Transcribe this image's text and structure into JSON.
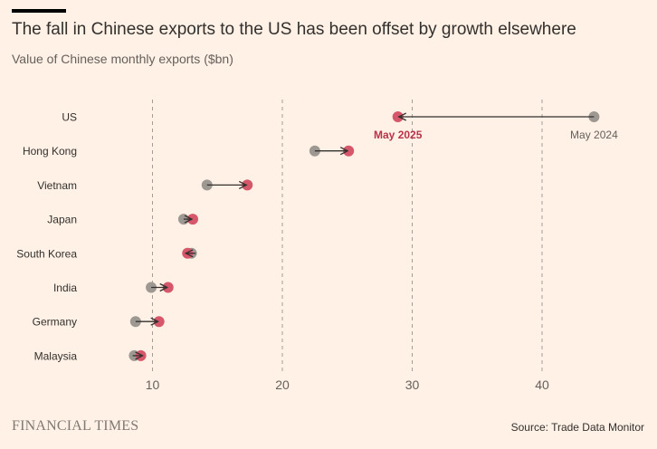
{
  "header": {
    "title": "The fall in Chinese exports to the US has been offset by growth elsewhere",
    "subtitle": "Value of Chinese monthly exports ($bn)"
  },
  "footer": {
    "logo": "FINANCIAL TIMES",
    "source": "Source: Trade Data Monitor"
  },
  "colors": {
    "background": "#FFF1E5",
    "may2024": "#9E9893",
    "may2025": "#D6566A",
    "arrow": "#33302E",
    "grid": "#A39D97"
  },
  "chart_data": {
    "type": "dumbbell",
    "title": "The fall in Chinese exports to the US has been offset by growth elsewhere",
    "subtitle": "Value of Chinese monthly exports ($bn)",
    "categories": [
      "US",
      "Hong Kong",
      "Vietnam",
      "Japan",
      "South Korea",
      "India",
      "Germany",
      "Malaysia"
    ],
    "series": [
      {
        "name": "May 2024",
        "values": [
          44.0,
          22.5,
          14.2,
          12.4,
          13.0,
          9.9,
          8.7,
          8.6
        ]
      },
      {
        "name": "May 2025",
        "values": [
          28.9,
          25.1,
          17.3,
          13.1,
          12.7,
          11.2,
          10.5,
          9.1
        ]
      }
    ],
    "xticks": [
      10,
      20,
      30,
      40
    ],
    "xlim": [
      0,
      48
    ],
    "grid": "vertical dashed",
    "annotations": [
      {
        "text": "May 2025",
        "series": "May 2025",
        "category": "US"
      },
      {
        "text": "May 2024",
        "series": "May 2024",
        "category": "US"
      }
    ]
  }
}
